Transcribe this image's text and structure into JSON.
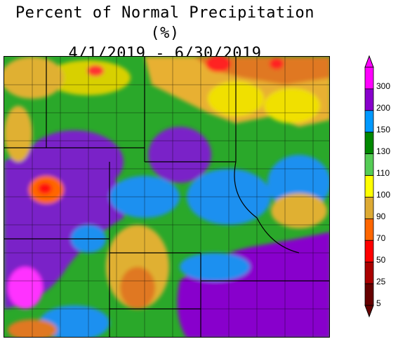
{
  "title": {
    "line1": "Percent of Normal Precipitation (%)",
    "line2": "4/1/2019 - 6/30/2019"
  },
  "legend": {
    "items": [
      {
        "label": "300",
        "color": "#ff00ff"
      },
      {
        "label": "200",
        "color": "#8800cc"
      },
      {
        "label": "150",
        "color": "#0099ff"
      },
      {
        "label": "130",
        "color": "#008800"
      },
      {
        "label": "110",
        "color": "#55cc55"
      },
      {
        "label": "100",
        "color": "#ffff00"
      },
      {
        "label": "90",
        "color": "#ddaa33"
      },
      {
        "label": "70",
        "color": "#ff6600"
      },
      {
        "label": "50",
        "color": "#ff0000"
      },
      {
        "label": "25",
        "color": "#aa0000"
      },
      {
        "label": "5",
        "color": "#660000"
      }
    ]
  }
}
